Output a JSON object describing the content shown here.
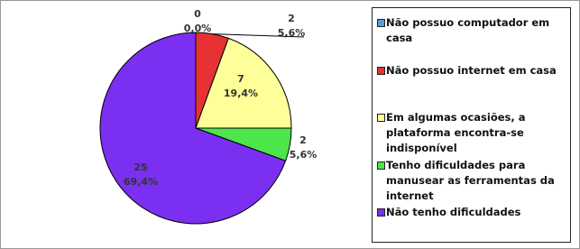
{
  "chart_data": {
    "type": "pie",
    "categories": [
      "Não possuo computador em casa",
      "Não possuo internet em casa",
      "Em algumas ocasiões, a plataforma encontra-se indisponível",
      "Tenho dificuldades para manusear as ferramentas da internet",
      "Não tenho dificuldades"
    ],
    "values": [
      0,
      2,
      7,
      2,
      25
    ],
    "percent_labels": [
      "0,0%",
      "5,6%",
      "19,4%",
      "5,6%",
      "69,4%"
    ],
    "colors": [
      "#5b9bd5",
      "#e63232",
      "#ffff99",
      "#4ce64c",
      "#7b2ff0"
    ],
    "legend": "right"
  }
}
